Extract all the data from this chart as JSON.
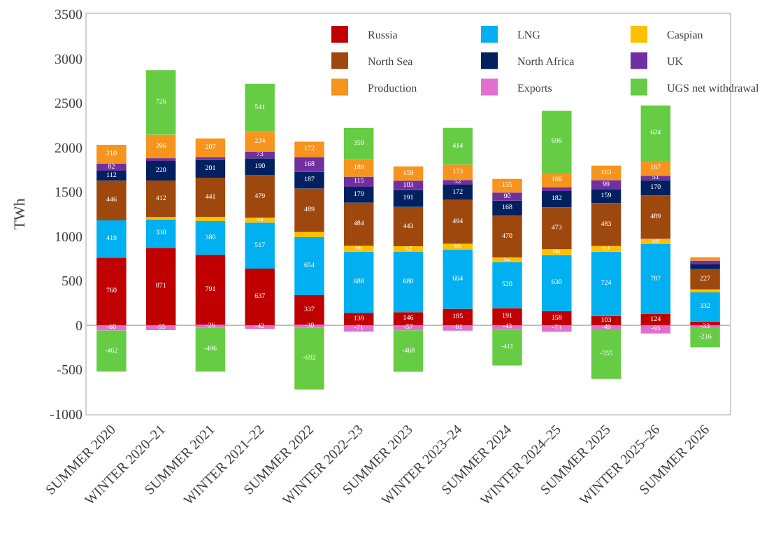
{
  "chart_data": {
    "type": "bar",
    "stacked": true,
    "ylabel": "TWh",
    "ylim": [
      -1000,
      3500
    ],
    "yticks": [
      -1000,
      -500,
      0,
      500,
      1000,
      1500,
      2000,
      2500,
      3000,
      3500
    ],
    "legend": "top",
    "data_labels": false,
    "categories": [
      "SUMMER 2020",
      "WINTER 2020–21",
      "SUMMER 2021",
      "WINTER 2021–22",
      "SUMMER 2022",
      "WINTER 2022–23",
      "SUMMER 2023",
      "WINTER 2023–24",
      "SUMMER 2024",
      "WINTER 2024–25",
      "SUMMER 2025",
      "WINTER 2025–26",
      "SUMMER 2026"
    ],
    "series": [
      {
        "name": "Russia",
        "color": "#c00000",
        "values": [
          760,
          871,
          791,
          637,
          337,
          139,
          146,
          185,
          191,
          158,
          103,
          124,
          42
        ],
        "value_labels": [
          "760",
          "871",
          "791",
          "637",
          "337",
          "139",
          "146",
          "185",
          "191",
          "158",
          "103",
          "124",
          null
        ]
      },
      {
        "name": "LNG",
        "color": "#00b0f0",
        "values": [
          419,
          330,
          380,
          517,
          654,
          688,
          680,
          664,
          520,
          630,
          724,
          787,
          332
        ],
        "value_labels": [
          "419",
          "330",
          "380",
          "517",
          "654",
          "688",
          "680",
          "664",
          "520",
          "630",
          "724",
          "787",
          "332"
        ]
      },
      {
        "name": "Caspian",
        "color": "#ffc000",
        "values": [
          0,
          15,
          47,
          54,
          57,
          66,
          62,
          66,
          52,
          66,
          63,
          59,
          29
        ],
        "value_labels": [
          null,
          null,
          null,
          "54",
          null,
          "66",
          "62",
          "66",
          "52",
          "66",
          "63",
          "59",
          null
        ]
      },
      {
        "name": "North Sea",
        "color": "#9e480e",
        "values": [
          446,
          412,
          441,
          479,
          489,
          484,
          443,
          494,
          470,
          473,
          483,
          489,
          227
        ],
        "value_labels": [
          "446",
          "412",
          "441",
          "479",
          "489",
          "484",
          "443",
          "494",
          "470",
          "473",
          "483",
          "489",
          "227"
        ]
      },
      {
        "name": "North Africa",
        "color": "#002060",
        "values": [
          112,
          220,
          201,
          190,
          187,
          179,
          191,
          172,
          168,
          182,
          159,
          170,
          67
        ],
        "value_labels": [
          "112",
          "220",
          "201",
          "190",
          "187",
          "179",
          "191",
          "172",
          "168",
          "182",
          "159",
          "170",
          null
        ]
      },
      {
        "name": "UK",
        "color": "#7030a0",
        "values": [
          82,
          29,
          32,
          73,
          168,
          115,
          103,
          52,
          90,
          39,
          99,
          51,
          30
        ],
        "value_labels": [
          "82",
          null,
          null,
          "73",
          "168",
          "115",
          "103",
          "52",
          "90",
          null,
          "99",
          "51",
          null
        ]
      },
      {
        "name": "Production",
        "color": "#f7941d",
        "values": [
          210,
          266,
          207,
          224,
          172,
          188,
          159,
          173,
          155,
          166,
          163,
          167,
          37
        ],
        "value_labels": [
          "210",
          "266",
          "207",
          "224",
          "172",
          "188",
          "159",
          "173",
          "155",
          "166",
          "163",
          "167",
          null
        ]
      },
      {
        "name": "Exports",
        "color": "#e070d0",
        "values": [
          -60,
          -55,
          -26,
          -42,
          -30,
          -71,
          -57,
          -61,
          -43,
          -73,
          -49,
          -93,
          -33
        ],
        "value_labels": [
          "-60",
          "-55",
          "-26",
          "-42",
          "-30",
          "-71",
          "-57",
          "-61",
          "-43",
          "-73",
          "-49",
          "-93",
          "-33"
        ]
      },
      {
        "name": "UGS net withdrawal",
        "color": "#66cc44",
        "values": [
          -462,
          726,
          -496,
          541,
          -692,
          359,
          -468,
          414,
          -411,
          696,
          -555,
          624,
          -216
        ],
        "value_labels": [
          "-462",
          "726",
          "-496",
          "541",
          "-692",
          "359",
          "-468",
          "414",
          "-411",
          "696",
          "-555",
          "624",
          "-216"
        ]
      }
    ]
  }
}
